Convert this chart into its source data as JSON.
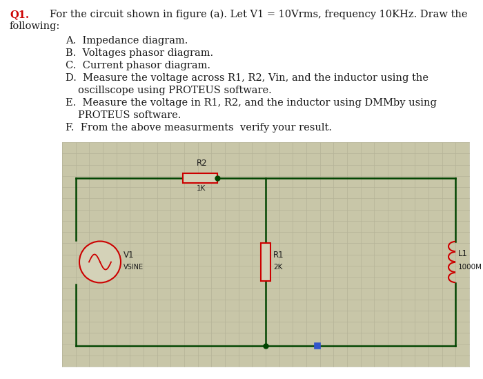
{
  "title_q": "Q1.",
  "title_text": "For the circuit shown in figure (a). Let V1 = 10Vrms, frequency 10KHz. Draw the",
  "following_text": "following:",
  "q_color": "#cc0000",
  "text_color": "#1a1a1a",
  "bg_color": "#ffffff",
  "circuit_bg": "#c8c6a8",
  "grid_color": "#b5b398",
  "wire_color": "#004400",
  "component_color": "#cc0000",
  "label_color": "#000000",
  "font_size_main": 10.5,
  "font_size_item": 10.5
}
